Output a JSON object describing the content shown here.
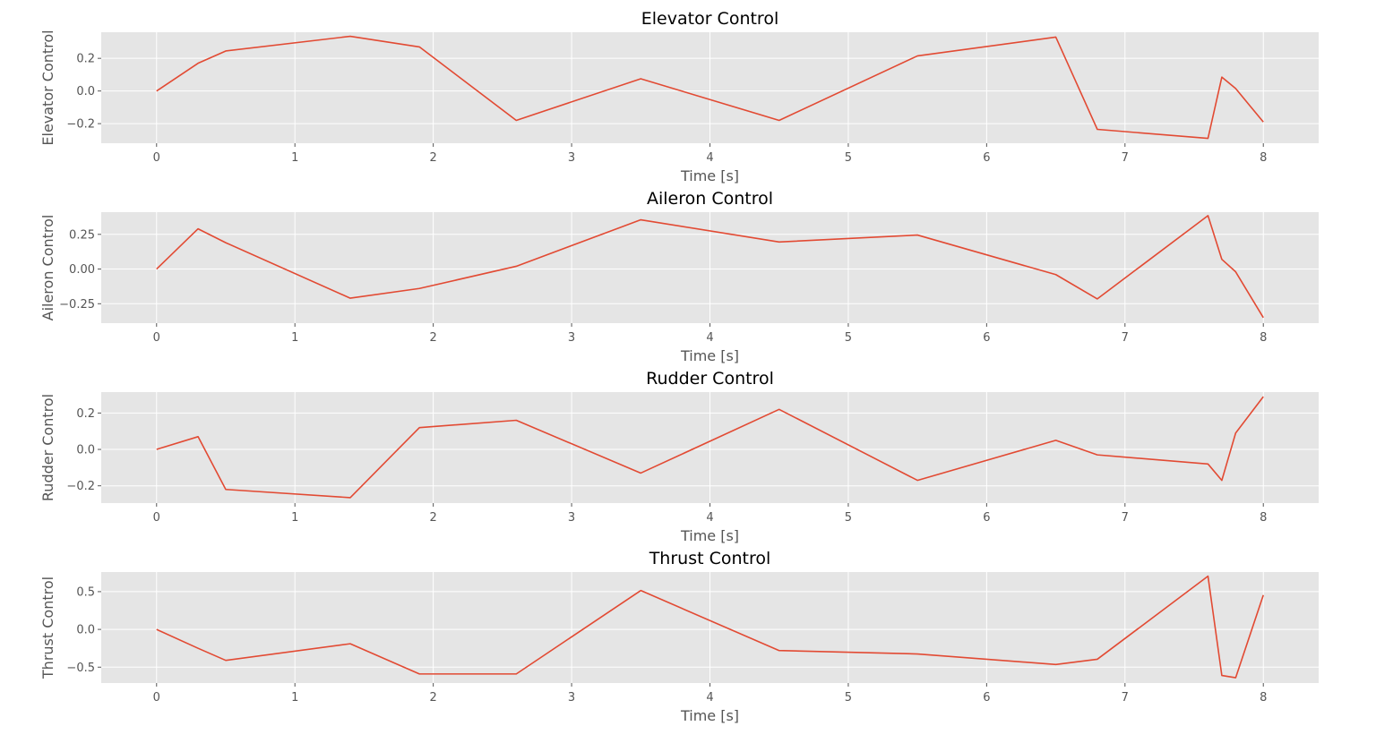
{
  "colors": {
    "panel": "#e5e5e5",
    "grid": "#ffffff",
    "line": "#e24a33",
    "text": "#555555"
  },
  "chart_data": [
    {
      "type": "line",
      "title": "Elevator Control",
      "xlabel": "Time [s]",
      "ylabel": "Elevator Control",
      "xlim": [
        -0.4,
        8.4
      ],
      "ylim": [
        -0.32,
        0.36
      ],
      "xticks": [
        0,
        1,
        2,
        3,
        4,
        5,
        6,
        7,
        8
      ],
      "yticks": [
        -0.2,
        0.0,
        0.2
      ],
      "ytick_labels": [
        "−0.2",
        "0.0",
        "0.2"
      ],
      "grid": true,
      "x": [
        0,
        0.3,
        0.5,
        1.4,
        1.9,
        2.6,
        3.5,
        4.5,
        5.5,
        6.5,
        6.8,
        7.6,
        7.7,
        7.8,
        8.0
      ],
      "series": [
        {
          "values": [
            0.0,
            0.17,
            0.245,
            0.335,
            0.27,
            -0.18,
            0.075,
            -0.18,
            0.215,
            0.33,
            -0.235,
            -0.29,
            0.085,
            0.015,
            -0.19
          ]
        }
      ]
    },
    {
      "type": "line",
      "title": "Aileron Control",
      "xlabel": "Time [s]",
      "ylabel": "Aileron Control",
      "xlim": [
        -0.4,
        8.4
      ],
      "ylim": [
        -0.39,
        0.41
      ],
      "xticks": [
        0,
        1,
        2,
        3,
        4,
        5,
        6,
        7,
        8
      ],
      "yticks": [
        -0.25,
        0.0,
        0.25
      ],
      "ytick_labels": [
        "−0.25",
        "0.00",
        "0.25"
      ],
      "grid": true,
      "x": [
        0,
        0.3,
        0.5,
        1.4,
        1.9,
        2.6,
        3.5,
        4.5,
        5.5,
        6.5,
        6.8,
        7.6,
        7.7,
        7.8,
        8.0
      ],
      "series": [
        {
          "values": [
            0.0,
            0.29,
            0.19,
            -0.21,
            -0.14,
            0.02,
            0.355,
            0.195,
            0.245,
            -0.04,
            -0.215,
            0.385,
            0.07,
            -0.02,
            -0.35
          ]
        }
      ]
    },
    {
      "type": "line",
      "title": "Rudder Control",
      "xlabel": "Time [s]",
      "ylabel": "Rudder Control",
      "xlim": [
        -0.4,
        8.4
      ],
      "ylim": [
        -0.295,
        0.315
      ],
      "xticks": [
        0,
        1,
        2,
        3,
        4,
        5,
        6,
        7,
        8
      ],
      "yticks": [
        -0.2,
        0.0,
        0.2
      ],
      "ytick_labels": [
        "−0.2",
        "0.0",
        "0.2"
      ],
      "grid": true,
      "x": [
        0,
        0.3,
        0.5,
        1.4,
        1.9,
        2.6,
        3.5,
        4.5,
        5.5,
        6.5,
        6.8,
        7.6,
        7.7,
        7.8,
        8.0
      ],
      "series": [
        {
          "values": [
            0.0,
            0.07,
            -0.22,
            -0.265,
            0.12,
            0.16,
            -0.13,
            0.22,
            -0.17,
            0.05,
            -0.03,
            -0.08,
            -0.17,
            0.09,
            0.29
          ]
        }
      ]
    },
    {
      "type": "line",
      "title": "Thrust Control",
      "xlabel": "Time [s]",
      "ylabel": "Thrust Control",
      "xlim": [
        -0.4,
        8.4
      ],
      "ylim": [
        -0.71,
        0.76
      ],
      "xticks": [
        0,
        1,
        2,
        3,
        4,
        5,
        6,
        7,
        8
      ],
      "yticks": [
        -0.5,
        0.0,
        0.5
      ],
      "ytick_labels": [
        "−0.5",
        "0.0",
        "0.5"
      ],
      "grid": true,
      "x": [
        0,
        0.3,
        0.5,
        1.4,
        1.9,
        2.6,
        3.5,
        4.5,
        5.5,
        6.5,
        6.8,
        7.6,
        7.7,
        7.8,
        8.0
      ],
      "series": [
        {
          "values": [
            0.0,
            -0.25,
            -0.41,
            -0.19,
            -0.59,
            -0.59,
            0.515,
            -0.28,
            -0.325,
            -0.465,
            -0.395,
            0.705,
            -0.61,
            -0.64,
            0.455
          ]
        }
      ]
    }
  ]
}
